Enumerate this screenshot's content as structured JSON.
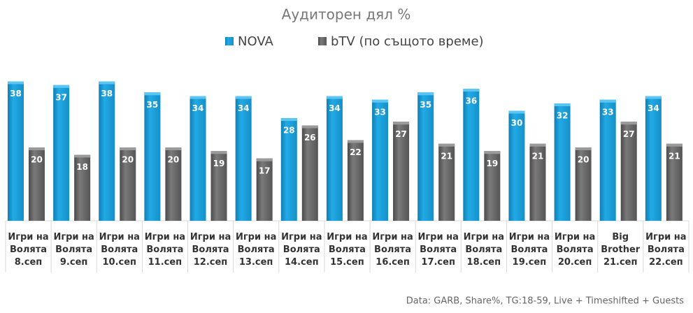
{
  "chart_data": {
    "type": "bar",
    "title": "Аудиторен дял %",
    "categories": [
      "Игри на\nВолята\n8.сеп",
      "Игри на\nВолята\n9.сеп",
      "Игри на\nВолята\n10.сеп",
      "Игри на\nВолята\n11.сеп",
      "Игри на\nВолята\n12.сеп",
      "Игри на\nВолята\n13.сеп",
      "Игри на\nВолята\n14.сеп",
      "Игри на\nВолята\n15.сеп",
      "Игри на\nВолята\n16.сеп",
      "Игри на\nВолята\n17.сеп",
      "Игри на\nВолята\n18.сеп",
      "Игри на\nВолята\n19.сеп",
      "Игри на\nВолята\n20.сеп",
      "Big\nBrother\n21.сеп",
      "Игри на\nВолята\n22.сеп"
    ],
    "series": [
      {
        "name": "NOVA",
        "color": "#1ea3dd",
        "values": [
          38,
          37,
          38,
          35,
          34,
          34,
          28,
          34,
          33,
          35,
          36,
          30,
          32,
          33,
          34
        ]
      },
      {
        "name": "bTV (по същото време)",
        "color": "#6b6b6b",
        "values": [
          20,
          18,
          20,
          20,
          19,
          17,
          26,
          22,
          27,
          21,
          19,
          21,
          20,
          27,
          21
        ]
      }
    ],
    "ylim": [
      0,
      40
    ],
    "source": "Data: GARB, Share%, TG:18-59, Live + Timeshifted + Guests"
  }
}
